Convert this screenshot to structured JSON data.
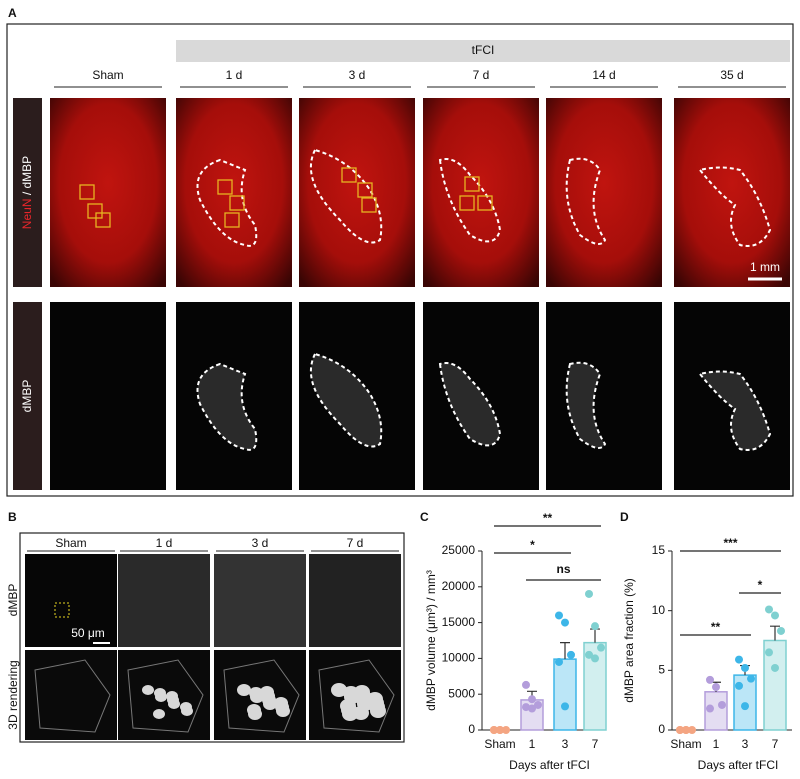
{
  "panel_a": {
    "label": "A",
    "group_label": "tFCI",
    "columns": [
      "Sham",
      "1 d",
      "3 d",
      "7 d",
      "14 d",
      "35 d"
    ],
    "row_labels": [
      [
        "NeuN",
        " / dMBP"
      ],
      [
        "dMBP"
      ]
    ],
    "scale_bar": "1 mm"
  },
  "panel_b": {
    "label": "B",
    "columns": [
      "Sham",
      "1 d",
      "3 d",
      "7 d"
    ],
    "row_labels": [
      "dMBP",
      "3D rendering"
    ],
    "scale_bar": "50 μm"
  },
  "chart_data": [
    {
      "type": "bar",
      "panel_label": "C",
      "ylabel": "dMBP volume (μm³) / mm³",
      "xlabel": "Days after tFCI",
      "categories": [
        "Sham",
        "1",
        "3",
        "7"
      ],
      "colors": [
        "#f4a582",
        "#b39ddb",
        "#3db6e8",
        "#7fd0d0"
      ],
      "values": [
        0,
        4200,
        9900,
        12200
      ],
      "errors": [
        0,
        1200,
        2300,
        1900
      ],
      "points": [
        [
          0,
          0,
          0,
          0,
          0
        ],
        [
          6300,
          4300,
          3500,
          3200,
          3000
        ],
        [
          16000,
          15000,
          10500,
          9500,
          3300
        ],
        [
          19000,
          14500,
          11500,
          10500,
          10000
        ]
      ],
      "ylim": [
        0,
        25000
      ],
      "yticks": [
        0,
        5000,
        10000,
        15000,
        20000,
        25000
      ],
      "comparisons": [
        {
          "from": 0,
          "to": 3,
          "label": "**"
        },
        {
          "from": 0,
          "to": 2,
          "label": "*"
        },
        {
          "from": 1,
          "to": 3,
          "label": "ns"
        }
      ]
    },
    {
      "type": "bar",
      "panel_label": "D",
      "ylabel": "dMBP area fraction (%)",
      "xlabel": "Days after tFCI",
      "categories": [
        "Sham",
        "1",
        "3",
        "7"
      ],
      "colors": [
        "#f4a582",
        "#b39ddb",
        "#3db6e8",
        "#7fd0d0"
      ],
      "values": [
        0,
        3.2,
        4.6,
        7.5
      ],
      "errors": [
        0,
        0.8,
        0.8,
        1.2
      ],
      "points": [
        [
          0,
          0,
          0,
          0,
          0
        ],
        [
          4.2,
          3.6,
          2.1,
          1.8
        ],
        [
          5.9,
          5.2,
          4.3,
          3.7,
          2.0
        ],
        [
          10.1,
          9.6,
          8.3,
          6.5,
          5.2
        ]
      ],
      "ylim": [
        0,
        15
      ],
      "yticks": [
        0,
        5,
        10,
        15
      ],
      "comparisons": [
        {
          "from": 0,
          "to": 3,
          "label": "***"
        },
        {
          "from": 2,
          "to": 3,
          "label": "*"
        },
        {
          "from": 0,
          "to": 2,
          "label": "**"
        }
      ]
    }
  ]
}
